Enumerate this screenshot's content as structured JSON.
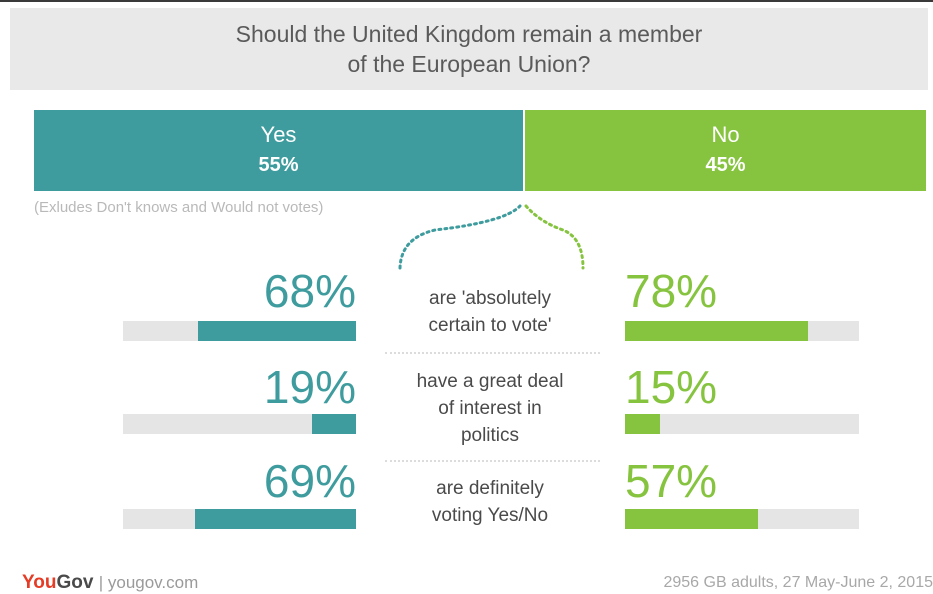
{
  "chart_data": {
    "type": "bar",
    "title": "Should the United Kingdom remain a member\nof the European Union?",
    "results": [
      {
        "label": "Yes",
        "value_label": "55%",
        "value": 55
      },
      {
        "label": "No",
        "value_label": "45%",
        "value": 45
      }
    ],
    "note": "(Exludes Don't knows and Would not votes)",
    "categories": [
      "are 'absolutely\ncertain to vote'",
      "have a great deal\nof interest in\npolitics",
      "are definitely\nvoting Yes/No"
    ],
    "series": [
      {
        "name": "Yes",
        "values": [
          68,
          19,
          69
        ],
        "labels": [
          "68%",
          "19%",
          "69%"
        ]
      },
      {
        "name": "No",
        "values": [
          78,
          15,
          57
        ],
        "labels": [
          "78%",
          "15%",
          "57%"
        ]
      }
    ],
    "ylim": [
      0,
      100
    ]
  },
  "colors": {
    "yes": "#3f9c9e",
    "no": "#86c440",
    "track": "#e5e5e5"
  },
  "footer": {
    "brand_you": "You",
    "brand_gov": "Gov",
    "brand_url": "| yougov.com",
    "source": "2956 GB adults, 27 May-June 2, 2015"
  }
}
